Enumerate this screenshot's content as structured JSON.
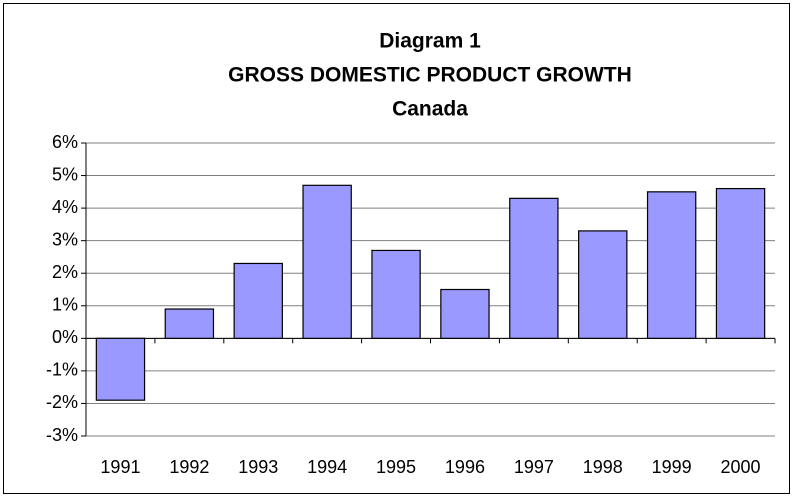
{
  "chart_data": {
    "type": "bar",
    "title": [
      "Diagram 1",
      "GROSS DOMESTIC PRODUCT GROWTH",
      "Canada"
    ],
    "categories": [
      "1991",
      "1992",
      "1993",
      "1994",
      "1995",
      "1996",
      "1997",
      "1998",
      "1999",
      "2000"
    ],
    "values": [
      -1.9,
      0.9,
      2.3,
      4.7,
      2.7,
      1.5,
      4.3,
      3.3,
      4.5,
      4.6
    ],
    "color": "#9999ff",
    "ylim": [
      -3,
      6
    ],
    "yticks": [
      {
        "value": -3,
        "label": "-3%"
      },
      {
        "value": -2,
        "label": "-2%"
      },
      {
        "value": -1,
        "label": "-1%"
      },
      {
        "value": 0,
        "label": "0%"
      },
      {
        "value": 1,
        "label": "1%"
      },
      {
        "value": 2,
        "label": "2%"
      },
      {
        "value": 3,
        "label": "3%"
      },
      {
        "value": 4,
        "label": "4%"
      },
      {
        "value": 5,
        "label": "5%"
      },
      {
        "value": 6,
        "label": "6%"
      }
    ],
    "grid": true
  }
}
